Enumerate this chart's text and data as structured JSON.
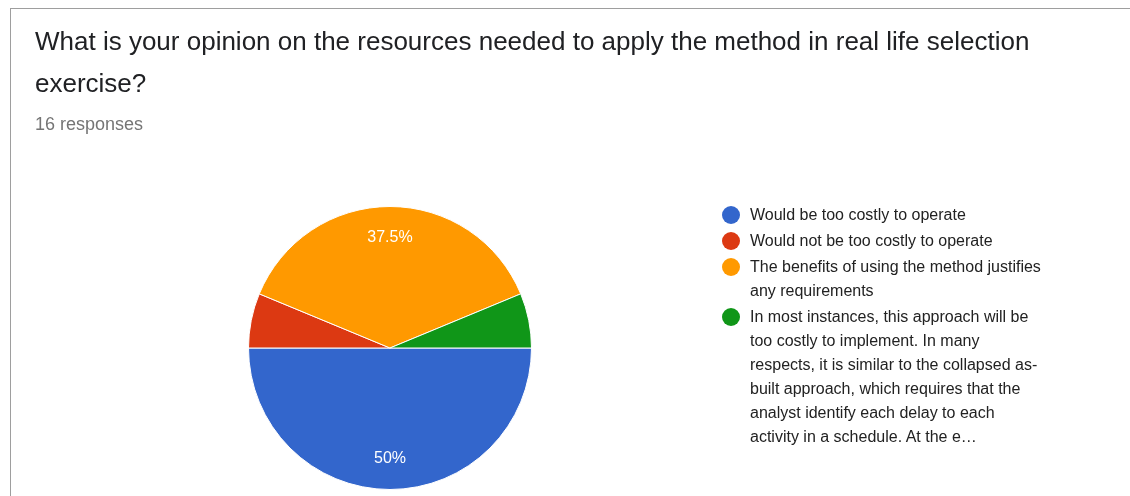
{
  "chart_data": {
    "type": "pie",
    "title": "What is your opinion on the resources needed to apply the method in real life selection exercise?",
    "subtitle": "16 responses",
    "categories": [
      "Would be too costly to operate",
      "Would not be too costly to operate",
      "The benefits of using the method justifies any requirements",
      "In most instances, this approach will be too costly to implement. In many respects, it is similar to the collapsed as-built approach, which requires that the analyst identify each delay to each activity in a schedule. At the e…"
    ],
    "values": [
      50,
      6.25,
      37.5,
      6.25
    ],
    "colors": [
      "#3366cc",
      "#dc3912",
      "#ff9900",
      "#109618"
    ],
    "value_labels": [
      "50%",
      null,
      "37.5%",
      null
    ],
    "legend": "right"
  }
}
